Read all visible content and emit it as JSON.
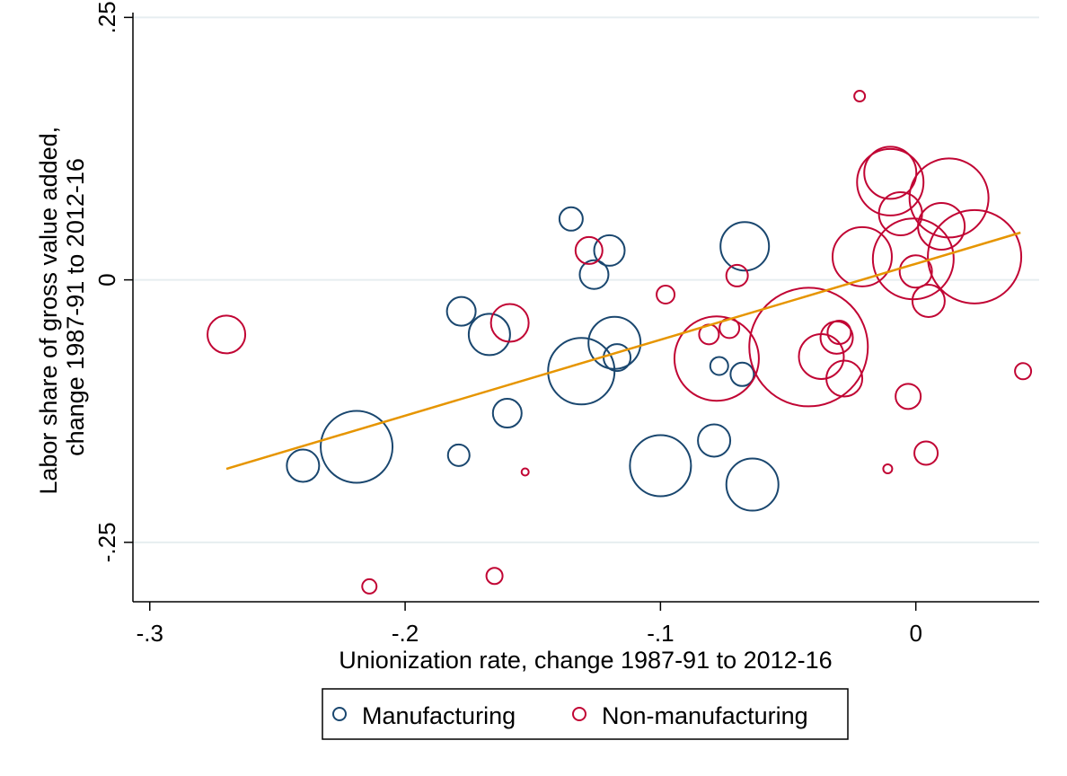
{
  "chart_data": {
    "type": "scatter",
    "xlabel": "Unionization rate, change 1987-91 to 2012-16",
    "ylabel_lines": [
      "Labor share of gross value added,",
      "change 1987-91 to 2012-16"
    ],
    "xlim": [
      -0.3066,
      0.0483
    ],
    "ylim": [
      -0.3066,
      0.2546
    ],
    "x_ticks": [
      {
        "value": -0.3,
        "label": "-.3"
      },
      {
        "value": -0.2,
        "label": "-.2"
      },
      {
        "value": -0.1,
        "label": "-.1"
      },
      {
        "value": 0,
        "label": "0"
      }
    ],
    "y_ticks": [
      {
        "value": -0.25,
        "label": "-.25"
      },
      {
        "value": 0,
        "label": "0"
      },
      {
        "value": 0.25,
        "label": ".25"
      }
    ],
    "grid": "horizontal",
    "legend_position": "bottom",
    "colors": {
      "manufacturing": "#1a476f",
      "non_manufacturing": "#c10534",
      "fit_line": "#e69500",
      "grid": "#e6eef0"
    },
    "series": [
      {
        "name": "Manufacturing",
        "color": "#1a476f",
        "points": [
          {
            "x": -0.24,
            "y": -0.177,
            "size": 18
          },
          {
            "x": -0.219,
            "y": -0.159,
            "size": 40
          },
          {
            "x": -0.179,
            "y": -0.167,
            "size": 12
          },
          {
            "x": -0.178,
            "y": -0.03,
            "size": 16
          },
          {
            "x": -0.167,
            "y": -0.052,
            "size": 23
          },
          {
            "x": -0.16,
            "y": -0.127,
            "size": 16
          },
          {
            "x": -0.135,
            "y": 0.058,
            "size": 13
          },
          {
            "x": -0.131,
            "y": -0.087,
            "size": 37
          },
          {
            "x": -0.126,
            "y": 0.005,
            "size": 16
          },
          {
            "x": -0.12,
            "y": 0.028,
            "size": 17
          },
          {
            "x": -0.118,
            "y": -0.06,
            "size": 29
          },
          {
            "x": -0.117,
            "y": -0.074,
            "size": 15
          },
          {
            "x": -0.1,
            "y": -0.177,
            "size": 34
          },
          {
            "x": -0.079,
            "y": -0.153,
            "size": 18
          },
          {
            "x": -0.077,
            "y": -0.082,
            "size": 10
          },
          {
            "x": -0.067,
            "y": 0.032,
            "size": 27
          },
          {
            "x": -0.068,
            "y": -0.09,
            "size": 13
          },
          {
            "x": -0.064,
            "y": -0.195,
            "size": 29
          }
        ]
      },
      {
        "name": "Non-manufacturing",
        "color": "#c10534",
        "points": [
          {
            "x": -0.27,
            "y": -0.052,
            "size": 21
          },
          {
            "x": -0.214,
            "y": -0.292,
            "size": 8
          },
          {
            "x": -0.165,
            "y": -0.282,
            "size": 9
          },
          {
            "x": -0.159,
            "y": -0.041,
            "size": 21
          },
          {
            "x": -0.153,
            "y": -0.183,
            "size": 4
          },
          {
            "x": -0.128,
            "y": 0.028,
            "size": 15
          },
          {
            "x": -0.098,
            "y": -0.014,
            "size": 10
          },
          {
            "x": -0.081,
            "y": -0.052,
            "size": 11
          },
          {
            "x": -0.078,
            "y": -0.075,
            "size": 47
          },
          {
            "x": -0.073,
            "y": -0.046,
            "size": 11
          },
          {
            "x": -0.07,
            "y": 0.004,
            "size": 12
          },
          {
            "x": -0.042,
            "y": -0.064,
            "size": 66
          },
          {
            "x": -0.037,
            "y": -0.073,
            "size": 25
          },
          {
            "x": -0.031,
            "y": -0.055,
            "size": 18
          },
          {
            "x": -0.03,
            "y": -0.05,
            "size": 13
          },
          {
            "x": -0.028,
            "y": -0.094,
            "size": 20
          },
          {
            "x": -0.022,
            "y": 0.175,
            "size": 6
          },
          {
            "x": -0.021,
            "y": 0.022,
            "size": 33
          },
          {
            "x": -0.01,
            "y": 0.102,
            "size": 29
          },
          {
            "x": -0.01,
            "y": 0.093,
            "size": 37
          },
          {
            "x": -0.011,
            "y": -0.18,
            "size": 5
          },
          {
            "x": -0.003,
            "y": -0.111,
            "size": 14
          },
          {
            "x": -0.006,
            "y": 0.063,
            "size": 24
          },
          {
            "x": -0.001,
            "y": 0.02,
            "size": 45
          },
          {
            "x": 0.0,
            "y": 0.008,
            "size": 18
          },
          {
            "x": 0.004,
            "y": -0.165,
            "size": 13
          },
          {
            "x": 0.005,
            "y": -0.02,
            "size": 18
          },
          {
            "x": 0.01,
            "y": 0.051,
            "size": 26
          },
          {
            "x": 0.013,
            "y": 0.078,
            "size": 44
          },
          {
            "x": 0.023,
            "y": 0.022,
            "size": 52
          },
          {
            "x": 0.042,
            "y": -0.087,
            "size": 9
          }
        ]
      }
    ],
    "fit_line": {
      "x": [
        -0.27,
        0.041
      ],
      "y": [
        -0.18,
        0.045
      ]
    }
  }
}
